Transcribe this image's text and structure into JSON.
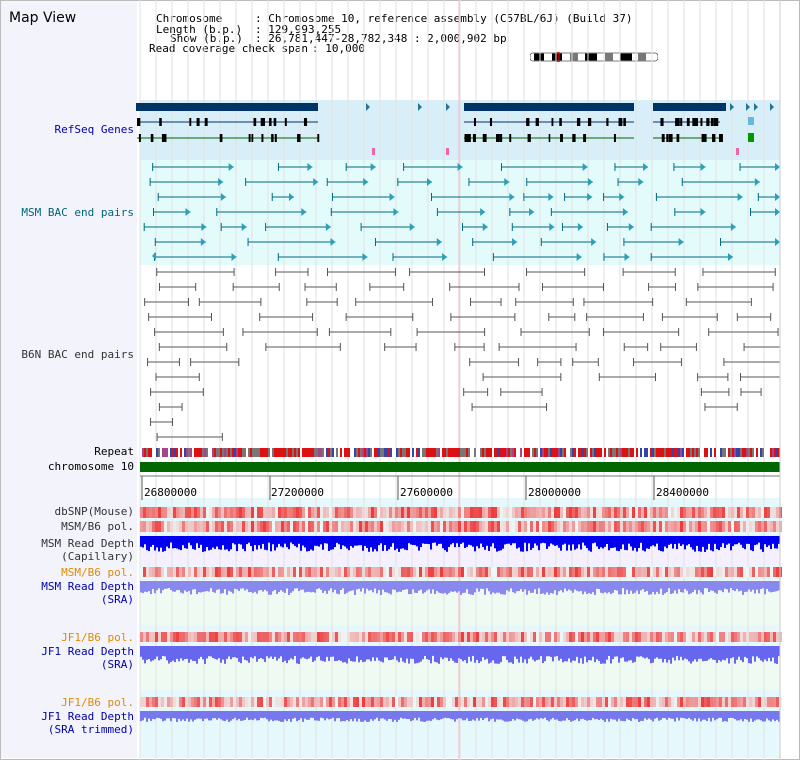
{
  "title": "Map View",
  "info": {
    "chromosome_key": "Chromosome",
    "chromosome_val": ": Chromosome 10, reference assembly (C57BL/6J) (Build 37)",
    "length_key": "Length (b.p.)",
    "length_val": ": 129,993,255",
    "show_key": "Show (b.p.)",
    "show_val": ": 26,781,447-28,782,348 : 2,000,902 bp",
    "coverage_key": "Read coverage check span",
    "coverage_val": ": 10,000"
  },
  "tracks": {
    "refseq": "RefSeq Genes",
    "msm_bac": "MSM BAC end pairs",
    "b6n_bac": "B6N BAC end pairs",
    "repeat": "Repeat",
    "chromosome": "chromosome 10",
    "dbsnp": "dbSNP(Mouse)",
    "msm_b6_pol": "MSM/B6 pol.",
    "msm_read_depth_cap_1": "MSM Read Depth",
    "msm_read_depth_cap_2": "(Capillary)",
    "msm_b6_pol_2": "MSM/B6 pol.",
    "msm_read_depth_sra_1": "MSM Read Depth",
    "msm_read_depth_sra_2": "(SRA)",
    "jf1_b6_pol": "JF1/B6 pol.",
    "jf1_read_depth_sra_1": "JF1 Read Depth",
    "jf1_read_depth_sra_2": "(SRA)",
    "jf1_b6_pol_2": "JF1/B6 pol.",
    "jf1_read_depth_trim_1": "JF1 Read Depth",
    "jf1_read_depth_trim_2": "(SRA trimmed)"
  },
  "axis": {
    "ticks": [
      "26800000",
      "27200000",
      "27600000",
      "28000000",
      "28400000"
    ]
  },
  "colors": {
    "refseq_bg": "#d8eef8",
    "msm_bg": "#e3fbfb",
    "b6n_bg": "#f6f6ff",
    "chrom_bar": "#006600",
    "refseq_gene": "#003366",
    "msm_feature": "#006a80",
    "b6n_feature": "#555555",
    "depth_blue": "#0000ee",
    "pol_red": "#ee3333"
  }
}
